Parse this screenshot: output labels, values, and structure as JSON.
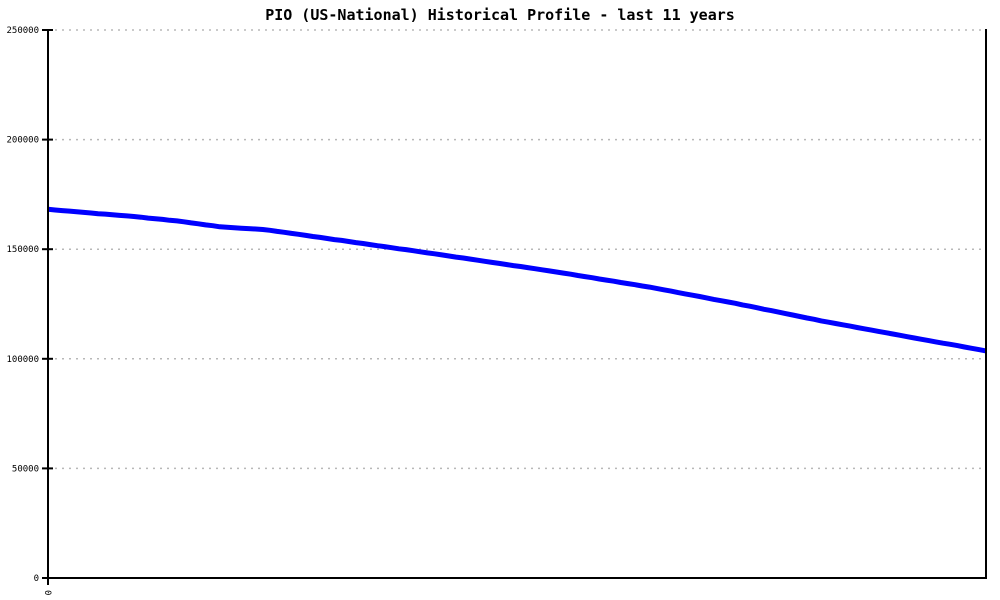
{
  "title": "PIO (US-National) Historical Profile - last 11 years",
  "chart_data": {
    "type": "line",
    "title": "PIO (US-National) Historical Profile - last 11 years",
    "xlabel": "",
    "ylabel": "",
    "x_description": "monthly index over last 11 years (132 points)",
    "xlim": [
      0,
      131
    ],
    "ylim": [
      0,
      250000
    ],
    "x_ticks": [
      "0"
    ],
    "y_ticks": [
      0,
      50000,
      100000,
      150000,
      200000,
      250000
    ],
    "grid": "horizontal-dashed",
    "legend": "none",
    "line_color": "#0000ff",
    "grid_color": "#b8b8b8",
    "axis_color": "#000000",
    "series": [
      {
        "name": "PIO (US-National)",
        "values": [
          168200,
          167900,
          167600,
          167400,
          167100,
          166800,
          166500,
          166200,
          166000,
          165700,
          165400,
          165200,
          164900,
          164600,
          164200,
          163900,
          163600,
          163200,
          162900,
          162500,
          162000,
          161600,
          161100,
          160700,
          160200,
          160000,
          159800,
          159600,
          159400,
          159200,
          159000,
          158600,
          158100,
          157700,
          157200,
          156800,
          156300,
          155800,
          155400,
          154900,
          154400,
          154000,
          153500,
          153000,
          152600,
          152100,
          151600,
          151200,
          150700,
          150200,
          149800,
          149300,
          148800,
          148300,
          147900,
          147400,
          146900,
          146400,
          146000,
          145500,
          145000,
          144500,
          144000,
          143500,
          143000,
          142500,
          142100,
          141600,
          141100,
          140600,
          140100,
          139600,
          139100,
          138600,
          138000,
          137500,
          137000,
          136400,
          135900,
          135400,
          134800,
          134300,
          133800,
          133200,
          132700,
          132100,
          131500,
          130900,
          130200,
          129600,
          129000,
          128400,
          127800,
          127100,
          126500,
          125900,
          125300,
          124600,
          124000,
          123300,
          122600,
          122000,
          121300,
          120600,
          120000,
          119300,
          118600,
          118000,
          117300,
          116700,
          116100,
          115500,
          114900,
          114300,
          113700,
          113100,
          112500,
          111900,
          111300,
          110700,
          110100,
          109500,
          108900,
          108300,
          107700,
          107100,
          106600,
          106000,
          105400,
          104800,
          104200,
          103600
        ]
      }
    ]
  }
}
